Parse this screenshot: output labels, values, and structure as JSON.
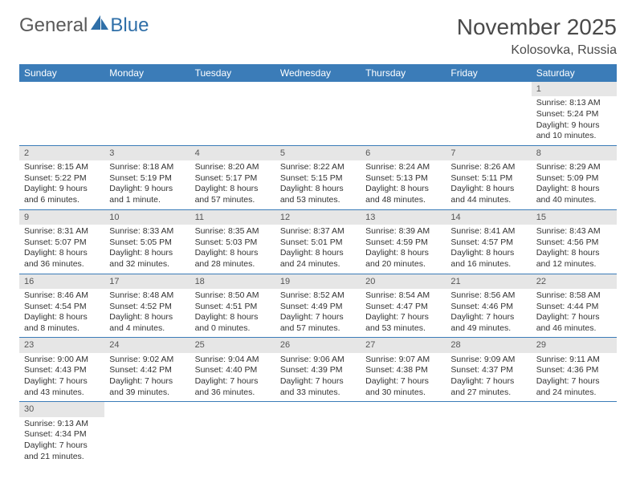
{
  "logo": {
    "text1": "General",
    "text2": "Blue"
  },
  "title": "November 2025",
  "location": "Kolosovka, Russia",
  "weekdays": [
    "Sunday",
    "Monday",
    "Tuesday",
    "Wednesday",
    "Thursday",
    "Friday",
    "Saturday"
  ],
  "colors": {
    "header_bg": "#3b7cb8",
    "header_text": "#ffffff",
    "daynum_bg": "#e6e6e6",
    "daynum_text": "#565656",
    "body_text": "#333333",
    "rule": "#3b7cb8",
    "logo_gray": "#5a5a5a",
    "logo_blue": "#2f6fa8"
  },
  "layout": {
    "cols": 7,
    "rows": 6,
    "first_day_col": 6
  },
  "days": [
    {
      "n": "1",
      "sr": "Sunrise: 8:13 AM",
      "ss": "Sunset: 5:24 PM",
      "dl1": "Daylight: 9 hours",
      "dl2": "and 10 minutes."
    },
    {
      "n": "2",
      "sr": "Sunrise: 8:15 AM",
      "ss": "Sunset: 5:22 PM",
      "dl1": "Daylight: 9 hours",
      "dl2": "and 6 minutes."
    },
    {
      "n": "3",
      "sr": "Sunrise: 8:18 AM",
      "ss": "Sunset: 5:19 PM",
      "dl1": "Daylight: 9 hours",
      "dl2": "and 1 minute."
    },
    {
      "n": "4",
      "sr": "Sunrise: 8:20 AM",
      "ss": "Sunset: 5:17 PM",
      "dl1": "Daylight: 8 hours",
      "dl2": "and 57 minutes."
    },
    {
      "n": "5",
      "sr": "Sunrise: 8:22 AM",
      "ss": "Sunset: 5:15 PM",
      "dl1": "Daylight: 8 hours",
      "dl2": "and 53 minutes."
    },
    {
      "n": "6",
      "sr": "Sunrise: 8:24 AM",
      "ss": "Sunset: 5:13 PM",
      "dl1": "Daylight: 8 hours",
      "dl2": "and 48 minutes."
    },
    {
      "n": "7",
      "sr": "Sunrise: 8:26 AM",
      "ss": "Sunset: 5:11 PM",
      "dl1": "Daylight: 8 hours",
      "dl2": "and 44 minutes."
    },
    {
      "n": "8",
      "sr": "Sunrise: 8:29 AM",
      "ss": "Sunset: 5:09 PM",
      "dl1": "Daylight: 8 hours",
      "dl2": "and 40 minutes."
    },
    {
      "n": "9",
      "sr": "Sunrise: 8:31 AM",
      "ss": "Sunset: 5:07 PM",
      "dl1": "Daylight: 8 hours",
      "dl2": "and 36 minutes."
    },
    {
      "n": "10",
      "sr": "Sunrise: 8:33 AM",
      "ss": "Sunset: 5:05 PM",
      "dl1": "Daylight: 8 hours",
      "dl2": "and 32 minutes."
    },
    {
      "n": "11",
      "sr": "Sunrise: 8:35 AM",
      "ss": "Sunset: 5:03 PM",
      "dl1": "Daylight: 8 hours",
      "dl2": "and 28 minutes."
    },
    {
      "n": "12",
      "sr": "Sunrise: 8:37 AM",
      "ss": "Sunset: 5:01 PM",
      "dl1": "Daylight: 8 hours",
      "dl2": "and 24 minutes."
    },
    {
      "n": "13",
      "sr": "Sunrise: 8:39 AM",
      "ss": "Sunset: 4:59 PM",
      "dl1": "Daylight: 8 hours",
      "dl2": "and 20 minutes."
    },
    {
      "n": "14",
      "sr": "Sunrise: 8:41 AM",
      "ss": "Sunset: 4:57 PM",
      "dl1": "Daylight: 8 hours",
      "dl2": "and 16 minutes."
    },
    {
      "n": "15",
      "sr": "Sunrise: 8:43 AM",
      "ss": "Sunset: 4:56 PM",
      "dl1": "Daylight: 8 hours",
      "dl2": "and 12 minutes."
    },
    {
      "n": "16",
      "sr": "Sunrise: 8:46 AM",
      "ss": "Sunset: 4:54 PM",
      "dl1": "Daylight: 8 hours",
      "dl2": "and 8 minutes."
    },
    {
      "n": "17",
      "sr": "Sunrise: 8:48 AM",
      "ss": "Sunset: 4:52 PM",
      "dl1": "Daylight: 8 hours",
      "dl2": "and 4 minutes."
    },
    {
      "n": "18",
      "sr": "Sunrise: 8:50 AM",
      "ss": "Sunset: 4:51 PM",
      "dl1": "Daylight: 8 hours",
      "dl2": "and 0 minutes."
    },
    {
      "n": "19",
      "sr": "Sunrise: 8:52 AM",
      "ss": "Sunset: 4:49 PM",
      "dl1": "Daylight: 7 hours",
      "dl2": "and 57 minutes."
    },
    {
      "n": "20",
      "sr": "Sunrise: 8:54 AM",
      "ss": "Sunset: 4:47 PM",
      "dl1": "Daylight: 7 hours",
      "dl2": "and 53 minutes."
    },
    {
      "n": "21",
      "sr": "Sunrise: 8:56 AM",
      "ss": "Sunset: 4:46 PM",
      "dl1": "Daylight: 7 hours",
      "dl2": "and 49 minutes."
    },
    {
      "n": "22",
      "sr": "Sunrise: 8:58 AM",
      "ss": "Sunset: 4:44 PM",
      "dl1": "Daylight: 7 hours",
      "dl2": "and 46 minutes."
    },
    {
      "n": "23",
      "sr": "Sunrise: 9:00 AM",
      "ss": "Sunset: 4:43 PM",
      "dl1": "Daylight: 7 hours",
      "dl2": "and 43 minutes."
    },
    {
      "n": "24",
      "sr": "Sunrise: 9:02 AM",
      "ss": "Sunset: 4:42 PM",
      "dl1": "Daylight: 7 hours",
      "dl2": "and 39 minutes."
    },
    {
      "n": "25",
      "sr": "Sunrise: 9:04 AM",
      "ss": "Sunset: 4:40 PM",
      "dl1": "Daylight: 7 hours",
      "dl2": "and 36 minutes."
    },
    {
      "n": "26",
      "sr": "Sunrise: 9:06 AM",
      "ss": "Sunset: 4:39 PM",
      "dl1": "Daylight: 7 hours",
      "dl2": "and 33 minutes."
    },
    {
      "n": "27",
      "sr": "Sunrise: 9:07 AM",
      "ss": "Sunset: 4:38 PM",
      "dl1": "Daylight: 7 hours",
      "dl2": "and 30 minutes."
    },
    {
      "n": "28",
      "sr": "Sunrise: 9:09 AM",
      "ss": "Sunset: 4:37 PM",
      "dl1": "Daylight: 7 hours",
      "dl2": "and 27 minutes."
    },
    {
      "n": "29",
      "sr": "Sunrise: 9:11 AM",
      "ss": "Sunset: 4:36 PM",
      "dl1": "Daylight: 7 hours",
      "dl2": "and 24 minutes."
    },
    {
      "n": "30",
      "sr": "Sunrise: 9:13 AM",
      "ss": "Sunset: 4:34 PM",
      "dl1": "Daylight: 7 hours",
      "dl2": "and 21 minutes."
    }
  ]
}
